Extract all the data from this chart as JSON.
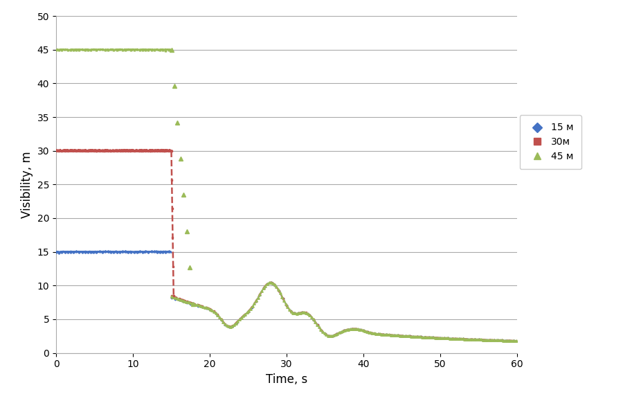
{
  "title": "",
  "xlabel": "Time, s",
  "ylabel": "Visibility, m",
  "xlim": [
    0,
    60
  ],
  "ylim": [
    0,
    50
  ],
  "xticks": [
    0,
    10,
    20,
    30,
    40,
    50,
    60
  ],
  "yticks": [
    0,
    5,
    10,
    15,
    20,
    25,
    30,
    35,
    40,
    45,
    50
  ],
  "color_15": "#4472C4",
  "color_30": "#C0504D",
  "color_45": "#9BBB59",
  "label_15": "15 м",
  "label_30": "30м",
  "label_45": "45 м",
  "background_color": "#ffffff",
  "grid_color": "#aaaaaa",
  "figure_bg": "#ffffff"
}
